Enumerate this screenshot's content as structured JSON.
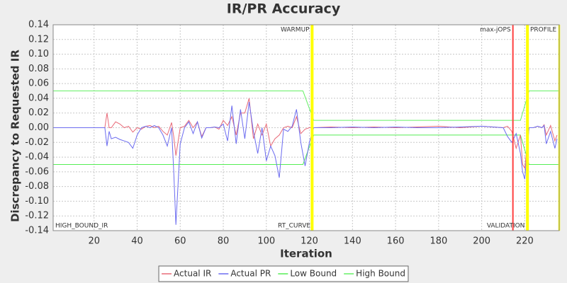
{
  "chart_data": {
    "type": "line",
    "title": "IR/PR Accuracy",
    "x_label": "Iteration",
    "y_label": "Discrepancy to Requested IR",
    "xlim": [
      1,
      236
    ],
    "ylim": [
      -0.14,
      0.14
    ],
    "xticks": [
      20,
      40,
      60,
      80,
      100,
      120,
      140,
      160,
      180,
      200,
      220
    ],
    "yticks": [
      -0.14,
      -0.12,
      {
        "value": -0.1,
        "label": "-0.10"
      },
      -0.08,
      -0.06,
      -0.04,
      -0.02,
      {
        "value": 0,
        "label": "0.00"
      },
      0.02,
      0.04,
      0.06,
      0.08,
      {
        "value": 0.1,
        "label": "0.10"
      },
      0.12,
      0.14
    ],
    "grid": true,
    "legend": "bottom",
    "x": [
      1,
      25,
      26,
      27,
      28,
      30,
      32,
      34,
      36,
      38,
      40,
      42,
      44,
      46,
      48,
      50,
      52,
      54,
      56,
      57,
      58,
      60,
      62,
      64,
      66,
      68,
      70,
      72,
      74,
      76,
      78,
      80,
      82,
      84,
      86,
      88,
      90,
      92,
      94,
      96,
      98,
      100,
      102,
      104,
      106,
      108,
      110,
      112,
      114,
      116,
      118,
      120,
      122,
      130,
      140,
      150,
      160,
      170,
      180,
      190,
      200,
      210,
      212,
      214,
      216,
      218,
      219,
      220,
      222,
      224,
      226,
      228,
      229,
      230,
      232,
      234,
      235
    ],
    "series": [
      {
        "name": "Actual IR",
        "color": "#e86a78",
        "values": [
          0,
          0,
          0.02,
          0,
          0,
          0.008,
          0.005,
          0,
          0.002,
          -0.006,
          0,
          -0.002,
          0.002,
          0.003,
          0,
          0.002,
          -0.005,
          -0.01,
          0.007,
          -0.012,
          -0.038,
          0,
          0.002,
          0.01,
          0,
          0.008,
          -0.012,
          0,
          0,
          0.001,
          -0.002,
          0.01,
          0.003,
          0.015,
          -0.01,
          0.02,
          0.02,
          0.04,
          -0.015,
          0.005,
          -0.01,
          0.005,
          -0.025,
          -0.015,
          -0.01,
          0,
          0.002,
          0,
          0.015,
          -0.008,
          -0.002,
          0,
          0,
          0.001,
          0,
          0.001,
          0,
          0.001,
          0.002,
          0,
          0.002,
          0,
          0.002,
          -0.005,
          -0.028,
          -0.01,
          -0.05,
          -0.055,
          0,
          0,
          0.002,
          0,
          0.004,
          -0.01,
          0.003,
          -0.018,
          -0.01
        ]
      },
      {
        "name": "Actual PR",
        "color": "#6c6cf0",
        "values": [
          0,
          0,
          -0.025,
          -0.005,
          -0.015,
          -0.013,
          -0.016,
          -0.018,
          -0.02,
          -0.028,
          -0.01,
          0,
          0.002,
          0,
          0.003,
          0,
          -0.01,
          -0.025,
          0,
          -0.06,
          -0.132,
          -0.022,
          0,
          0.008,
          -0.008,
          0.008,
          -0.014,
          0,
          0,
          0.001,
          0,
          0.005,
          -0.018,
          0.03,
          -0.022,
          0.025,
          -0.015,
          0.035,
          -0.005,
          -0.035,
          0,
          -0.045,
          -0.025,
          -0.038,
          -0.068,
          -0.002,
          -0.005,
          0.002,
          0.025,
          -0.02,
          -0.052,
          -0.02,
          0,
          0,
          0.001,
          0,
          0.001,
          0,
          0,
          0.001,
          0.002,
          0,
          -0.012,
          -0.02,
          -0.008,
          -0.035,
          -0.06,
          -0.07,
          0,
          0,
          0.002,
          0,
          0.003,
          -0.022,
          -0.005,
          -0.028,
          -0.015
        ]
      },
      {
        "name": "Low Bound",
        "color": "#55ee55",
        "x": [
          1,
          117,
          122,
          218,
          222,
          236
        ],
        "values": [
          -0.05,
          -0.05,
          -0.01,
          -0.01,
          -0.05,
          -0.05
        ]
      },
      {
        "name": "High Bound",
        "color": "#66f066",
        "x": [
          1,
          117,
          122,
          218,
          222,
          236
        ],
        "values": [
          0.05,
          0.05,
          0.01,
          0.01,
          0.05,
          0.05
        ]
      }
    ],
    "markers": [
      {
        "x": 1,
        "label": "HIGH_BOUND_IR",
        "position": "bottom",
        "side": "right",
        "color": "none"
      },
      {
        "x": 121,
        "label": "WARMUP",
        "position": "top",
        "side": "left",
        "color": "#ffff00"
      },
      {
        "x": 121.5,
        "label": "RT_CURVE",
        "position": "bottom",
        "side": "left",
        "color": "#ffff00"
      },
      {
        "x": 214.5,
        "label": "max-jOPS",
        "position": "top",
        "side": "left",
        "color": "#ff4040"
      },
      {
        "x": 221,
        "label": "VALIDATION",
        "position": "bottom",
        "side": "left",
        "color": "#ffff00"
      },
      {
        "x": 221.5,
        "label": "PROFILE",
        "position": "top",
        "side": "right",
        "color": "#ffff00"
      },
      {
        "x": 236,
        "label": null,
        "position": "top",
        "side": "left",
        "color": "#ffff00"
      }
    ]
  }
}
